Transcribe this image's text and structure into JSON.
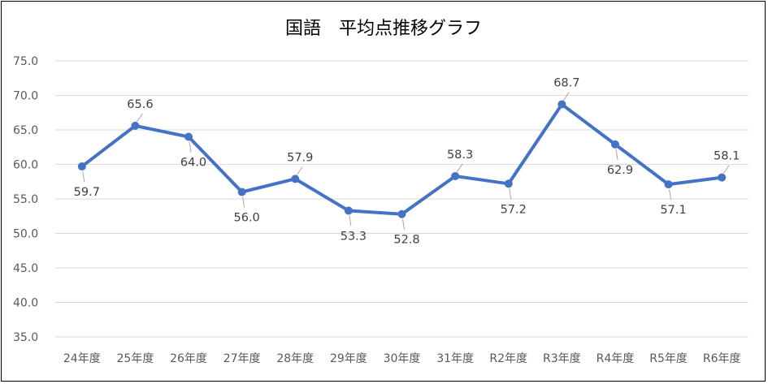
{
  "chart_data": {
    "type": "line",
    "title": "国語　平均点推移グラフ",
    "categories": [
      "24年度",
      "25年度",
      "26年度",
      "27年度",
      "28年度",
      "29年度",
      "30年度",
      "31年度",
      "R2年度",
      "R3年度",
      "R4年度",
      "R5年度",
      "R6年度"
    ],
    "values": [
      59.7,
      65.6,
      64.0,
      56.0,
      57.9,
      53.3,
      52.8,
      58.3,
      57.2,
      68.7,
      62.9,
      57.1,
      58.1
    ],
    "value_labels": [
      "59.7",
      "65.6",
      "64.0",
      "56.0",
      "57.9",
      "53.3",
      "52.8",
      "58.3",
      "57.2",
      "68.7",
      "62.9",
      "57.1",
      "58.1"
    ],
    "label_positions": [
      "below",
      "above",
      "below",
      "below",
      "above",
      "below",
      "below",
      "above",
      "below",
      "above",
      "below",
      "below",
      "above"
    ],
    "ylim": [
      35.0,
      75.0
    ],
    "yticks": [
      "35.0",
      "40.0",
      "45.0",
      "50.0",
      "55.0",
      "60.0",
      "65.0",
      "70.0",
      "75.0"
    ],
    "grid": true,
    "legend": "none",
    "colors": {
      "line": "#4472C4",
      "grid": "#D9D9D9",
      "leader": "#A6A6A6"
    }
  }
}
